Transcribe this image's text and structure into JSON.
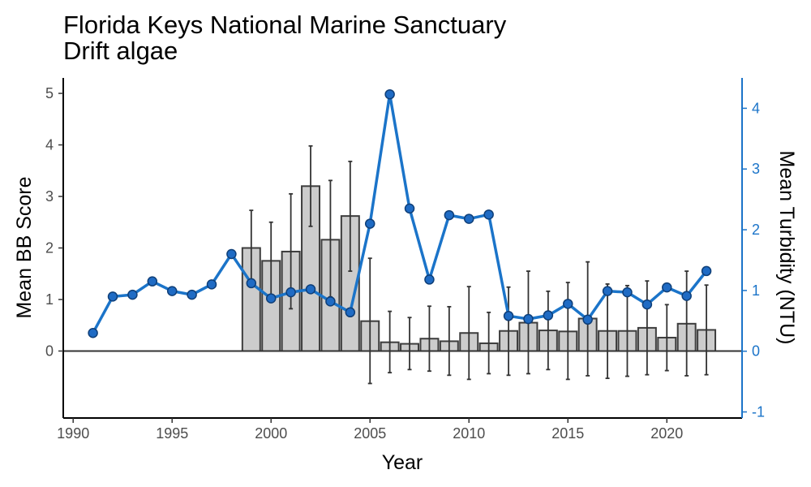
{
  "chart_data": {
    "type": "bar+line",
    "title": "Florida Keys National Marine Sanctuary",
    "subtitle": "Drift algae",
    "xlabel": "Year",
    "ylabel": "Mean BB Score",
    "y2label": "Mean Turbidity (NTU)",
    "xlim": [
      1989.5,
      2023.8
    ],
    "ylim": [
      -1.3,
      5.3
    ],
    "y2lim": [
      -1.1,
      4.5
    ],
    "x_ticks": [
      "1990",
      "1995",
      "2000",
      "2005",
      "2010",
      "2015",
      "2020"
    ],
    "y_ticks": [
      "0",
      "1",
      "2",
      "3",
      "4",
      "5"
    ],
    "y2_ticks": [
      "-1",
      "0",
      "1",
      "2",
      "3",
      "4"
    ],
    "colors": {
      "bar_fill": "#cccccc",
      "bar_stroke": "#3d3d3d",
      "errorbar": "#333333",
      "line": "#1b74c9",
      "point_fill": "#1f6bc4",
      "point_stroke": "#0f3f78",
      "right_axis": "#1b74c9"
    },
    "bars": {
      "name": "Mean BB Score",
      "x": [
        1999,
        2000,
        2001,
        2002,
        2003,
        2004,
        2005,
        2006,
        2007,
        2008,
        2009,
        2010,
        2011,
        2012,
        2013,
        2014,
        2015,
        2016,
        2017,
        2018,
        2019,
        2020,
        2021,
        2022
      ],
      "values": [
        2.0,
        1.75,
        1.93,
        3.2,
        2.16,
        2.62,
        0.58,
        0.17,
        0.14,
        0.24,
        0.19,
        0.35,
        0.15,
        0.39,
        0.55,
        0.4,
        0.38,
        0.63,
        0.39,
        0.39,
        0.45,
        0.26,
        0.53,
        0.41
      ],
      "err_low": [
        1.28,
        1.0,
        0.82,
        2.42,
        1.05,
        1.55,
        -0.63,
        -0.42,
        -0.36,
        -0.39,
        -0.47,
        -0.55,
        -0.44,
        -0.47,
        -0.44,
        -0.36,
        -0.55,
        -0.48,
        -0.53,
        -0.49,
        -0.46,
        -0.38,
        -0.48,
        -0.46
      ],
      "err_high": [
        2.73,
        2.5,
        3.05,
        3.98,
        3.31,
        3.68,
        1.8,
        0.77,
        0.65,
        0.87,
        0.86,
        1.25,
        0.75,
        1.24,
        1.55,
        1.16,
        1.33,
        1.73,
        1.3,
        1.27,
        1.36,
        0.9,
        1.55,
        1.28
      ]
    },
    "line": {
      "name": "Mean Turbidity (NTU)",
      "x": [
        1991,
        1992,
        1993,
        1994,
        1995,
        1996,
        1997,
        1998,
        1999,
        2000,
        2001,
        2002,
        2003,
        2004,
        2005,
        2006,
        2007,
        2008,
        2009,
        2010,
        2011,
        2012,
        2013,
        2014,
        2015,
        2016,
        2017,
        2018,
        2019,
        2020,
        2021,
        2022
      ],
      "values": [
        0.3,
        0.9,
        0.93,
        1.15,
        0.99,
        0.93,
        1.1,
        1.6,
        1.12,
        0.87,
        0.97,
        1.02,
        0.82,
        0.64,
        2.1,
        4.23,
        2.35,
        1.18,
        2.24,
        2.18,
        2.25,
        0.58,
        0.53,
        0.59,
        0.78,
        0.52,
        0.99,
        0.97,
        0.77,
        1.05,
        0.91,
        1.32
      ]
    },
    "grid": false,
    "legend": "none"
  }
}
